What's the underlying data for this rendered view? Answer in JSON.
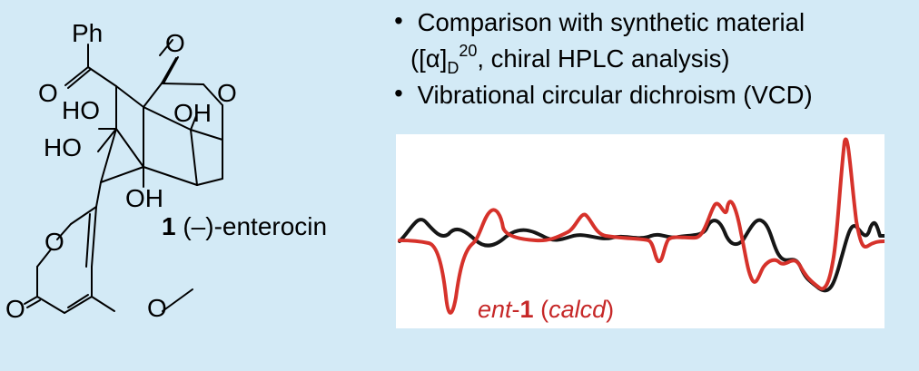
{
  "structure": {
    "labels": {
      "ph": "Ph",
      "o_top": "O",
      "o_ketone": "O",
      "o_lactone": "O",
      "ho_upper": "HO",
      "oh_upper": "OH",
      "ho_left": "HO",
      "oh_lower": "OH",
      "o_ring": "O",
      "o_pyrone": "O",
      "o_methoxy": "O"
    }
  },
  "compound": {
    "number": "1",
    "name": "(–)-enterocin"
  },
  "bullets": {
    "items": [
      {
        "text_before": "Comparison with synthetic material",
        "text_indent": "([α]",
        "sub": "D",
        "sup": "20",
        "text_after": ", chiral HPLC analysis)"
      },
      {
        "text": "Vibrational circular dichroism (VCD)"
      }
    ],
    "bullet_symbol": "•"
  },
  "vcd": {
    "label_italic": "ent",
    "label_dash": "-",
    "label_bold": "1",
    "label_open": " (",
    "label_calc": "calcd",
    "label_close": ")",
    "colors": {
      "calculated": "#d6322b",
      "experimental": "#161616"
    }
  }
}
